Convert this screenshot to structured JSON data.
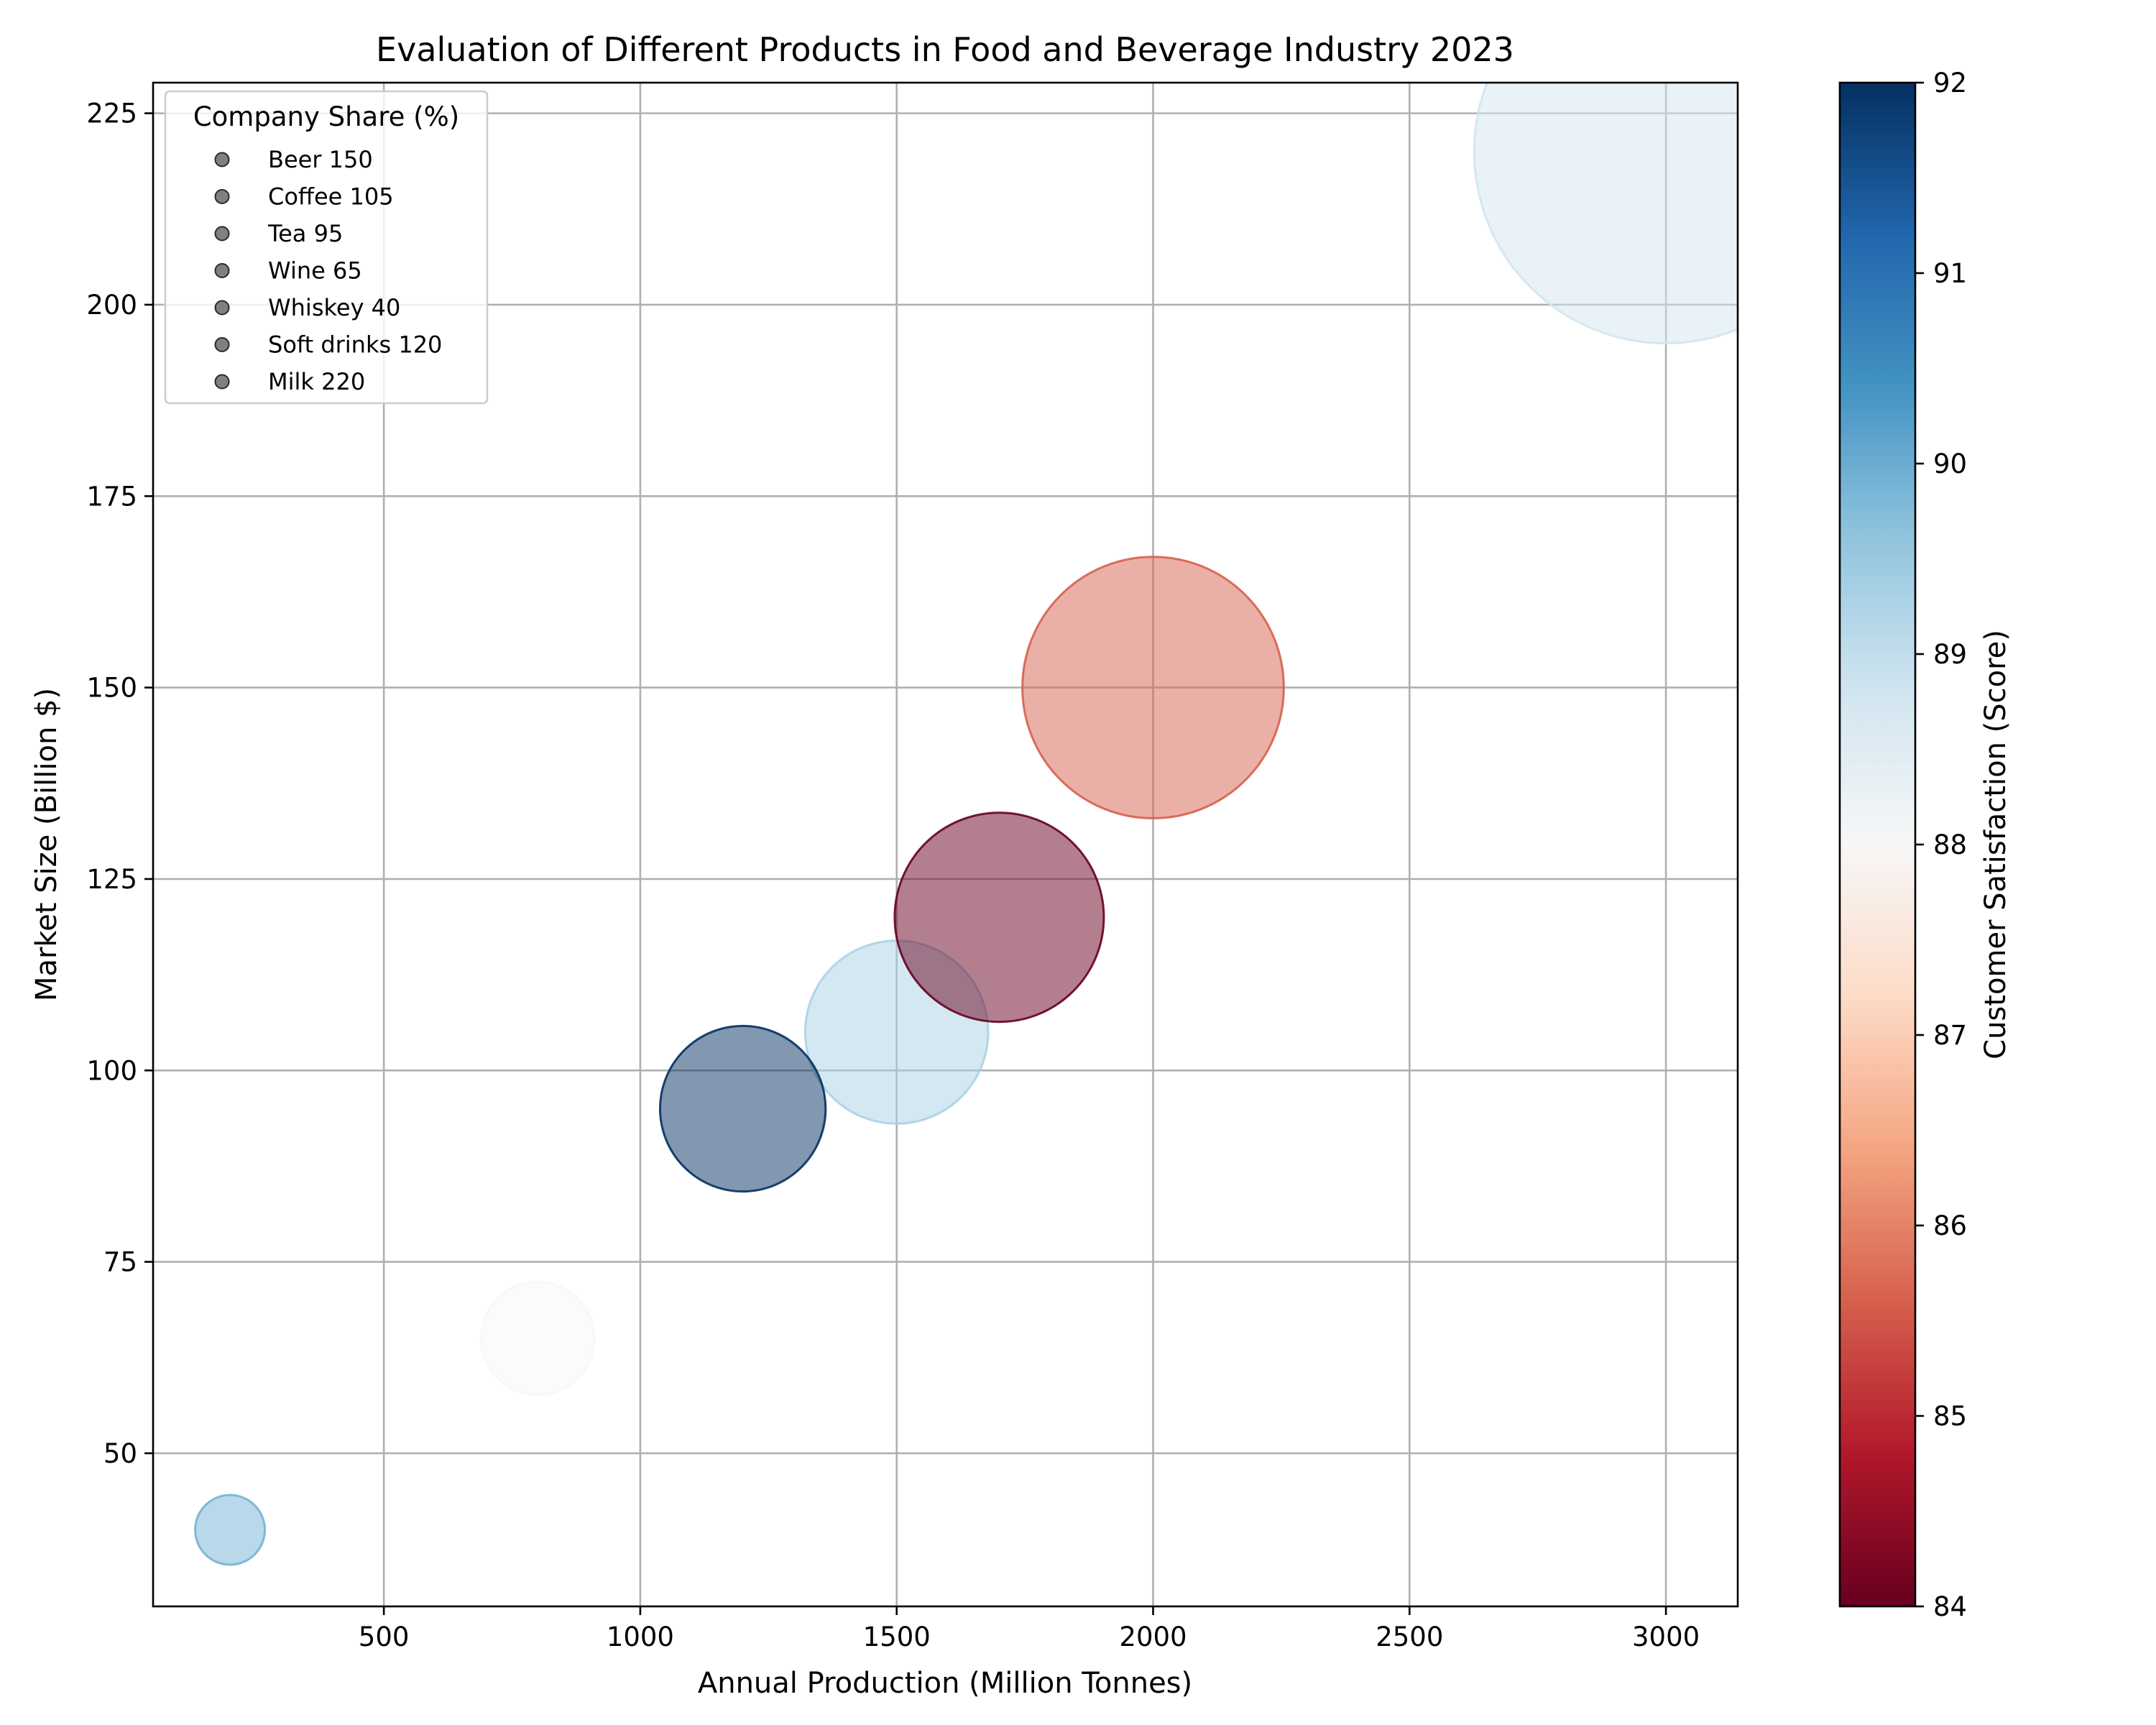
{
  "chart_data": {
    "type": "scatter",
    "subtype": "bubble",
    "title": "Evaluation of Different Products in Food and Beverage Industry 2023",
    "xlabel": "Annual Production (Million Tonnes)",
    "ylabel": "Market Size (Billion $)",
    "xlim": [
      50,
      3140
    ],
    "ylim": [
      30,
      229
    ],
    "xticks": [
      500,
      1000,
      1500,
      2000,
      2500,
      3000
    ],
    "yticks": [
      50,
      75,
      100,
      125,
      150,
      175,
      200,
      225
    ],
    "grid": true,
    "size_encoding": "Company Share (%)",
    "color_encoding": "Customer Satisfaction (Score)",
    "legend": {
      "title": "Company Share (%)",
      "placement": "top-left",
      "entries": [
        "Beer 150",
        "Coffee 105",
        "Tea 95",
        "Wine 65",
        "Whiskey 40",
        "Soft drinks 120",
        "Milk 220"
      ]
    },
    "points": [
      {
        "name": "Beer",
        "x": 2000,
        "y": 150,
        "size": 150,
        "color_value": 85.6
      },
      {
        "name": "Coffee",
        "x": 1500,
        "y": 105,
        "size": 105,
        "color_value": 89.3
      },
      {
        "name": "Tea",
        "x": 1200,
        "y": 95,
        "size": 95,
        "color_value": 92
      },
      {
        "name": "Wine",
        "x": 800,
        "y": 65,
        "size": 65,
        "color_value": 88
      },
      {
        "name": "Whiskey",
        "x": 200,
        "y": 40,
        "size": 40,
        "color_value": 89.9
      },
      {
        "name": "Soft drinks",
        "x": 1700,
        "y": 120,
        "size": 120,
        "color_value": 84
      },
      {
        "name": "Milk",
        "x": 3000,
        "y": 220,
        "size": 220,
        "color_value": 88.8
      }
    ],
    "colorbar": {
      "label": "Customer Satisfaction (Score)",
      "range": [
        84,
        92
      ],
      "ticks": [
        84,
        85,
        86,
        87,
        88,
        89,
        90,
        91,
        92
      ],
      "colormap": "RdBu"
    },
    "marker_alpha": 0.5
  }
}
